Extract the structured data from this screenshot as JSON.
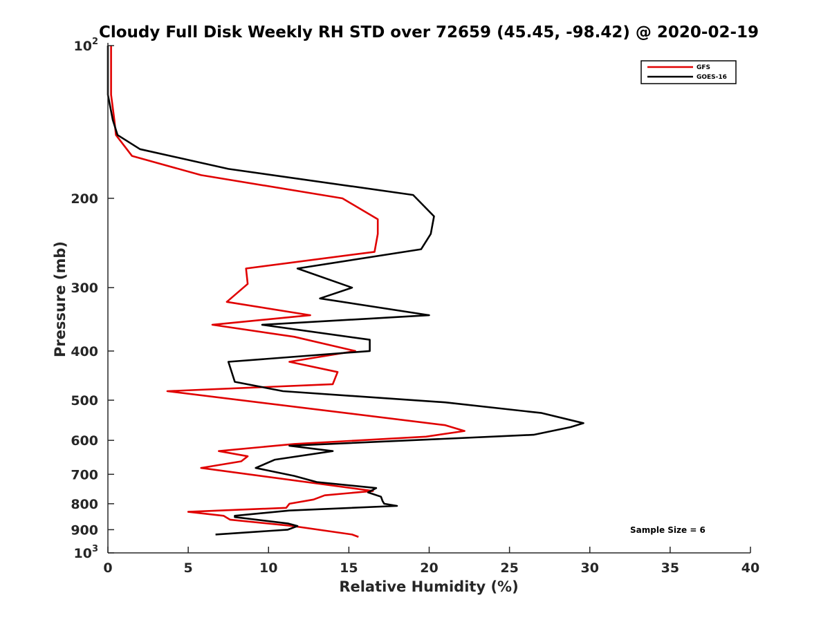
{
  "chart_data": {
    "type": "line",
    "title": "Cloudy Full Disk Weekly RH STD over 72659 (45.45, -98.42) @ 2020-02-19",
    "xlabel": "Relative Humidity (%)",
    "ylabel": "Pressure (mb)",
    "xlim": [
      0,
      40
    ],
    "ylim": [
      100,
      1000
    ],
    "y_scale": "log",
    "y_reversed": true,
    "x_ticks": [
      "0",
      "5",
      "10",
      "15",
      "20",
      "25",
      "30",
      "35",
      "40"
    ],
    "y_ticks": [
      {
        "value": 100,
        "base": "10",
        "exp": "2"
      },
      {
        "value": 200,
        "label": "200"
      },
      {
        "value": 300,
        "label": "300"
      },
      {
        "value": 400,
        "label": "400"
      },
      {
        "value": 500,
        "label": "500"
      },
      {
        "value": 600,
        "label": "600"
      },
      {
        "value": 700,
        "label": "700"
      },
      {
        "value": 800,
        "label": "800"
      },
      {
        "value": 900,
        "label": "900"
      },
      {
        "value": 1000,
        "base": "10",
        "exp": "3"
      }
    ],
    "legend_position": "top-right",
    "annotation": "Sample Size = 6",
    "series": [
      {
        "name": "GFS",
        "color": "#e00000",
        "points": [
          [
            0.2,
            100
          ],
          [
            0.2,
            115
          ],
          [
            0.2,
            125
          ],
          [
            0.4,
            140
          ],
          [
            0.5,
            150
          ],
          [
            1.5,
            165
          ],
          [
            5.8,
            180
          ],
          [
            14.6,
            200
          ],
          [
            16.8,
            220
          ],
          [
            16.8,
            235
          ],
          [
            16.6,
            255
          ],
          [
            8.6,
            275
          ],
          [
            8.7,
            295
          ],
          [
            7.4,
            320
          ],
          [
            12.6,
            340
          ],
          [
            6.5,
            355
          ],
          [
            11.6,
            375
          ],
          [
            15.4,
            400
          ],
          [
            11.3,
            420
          ],
          [
            14.3,
            440
          ],
          [
            14.0,
            465
          ],
          [
            3.7,
            480
          ],
          [
            21.0,
            560
          ],
          [
            22.2,
            575
          ],
          [
            19.8,
            590
          ],
          [
            11.6,
            610
          ],
          [
            6.9,
            630
          ],
          [
            8.7,
            645
          ],
          [
            8.3,
            660
          ],
          [
            5.8,
            680
          ],
          [
            16.5,
            755
          ],
          [
            13.5,
            770
          ],
          [
            12.8,
            785
          ],
          [
            11.3,
            800
          ],
          [
            11.1,
            815
          ],
          [
            5.0,
            830
          ],
          [
            7.2,
            845
          ],
          [
            7.6,
            860
          ],
          [
            11.5,
            885
          ],
          [
            15.2,
            920
          ],
          [
            15.6,
            930
          ]
        ]
      },
      {
        "name": "GOES-16",
        "color": "#000000",
        "points": [
          [
            0.0,
            100
          ],
          [
            0.0,
            125
          ],
          [
            0.3,
            140
          ],
          [
            0.6,
            150
          ],
          [
            2.0,
            160
          ],
          [
            7.5,
            175
          ],
          [
            19.0,
            197
          ],
          [
            20.3,
            217
          ],
          [
            20.1,
            235
          ],
          [
            19.5,
            252
          ],
          [
            11.8,
            275
          ],
          [
            15.2,
            300
          ],
          [
            13.2,
            315
          ],
          [
            20.0,
            340
          ],
          [
            9.6,
            355
          ],
          [
            16.3,
            380
          ],
          [
            16.3,
            400
          ],
          [
            7.5,
            420
          ],
          [
            7.9,
            460
          ],
          [
            10.9,
            480
          ],
          [
            21.0,
            505
          ],
          [
            27.0,
            530
          ],
          [
            29.6,
            555
          ],
          [
            28.8,
            565
          ],
          [
            26.5,
            585
          ],
          [
            11.3,
            615
          ],
          [
            14.0,
            630
          ],
          [
            10.4,
            655
          ],
          [
            9.2,
            680
          ],
          [
            11.6,
            705
          ],
          [
            13.0,
            725
          ],
          [
            16.7,
            745
          ],
          [
            16.2,
            760
          ],
          [
            17.0,
            775
          ],
          [
            17.1,
            790
          ],
          [
            17.2,
            800
          ],
          [
            18.0,
            808
          ],
          [
            11.3,
            825
          ],
          [
            7.9,
            845
          ],
          [
            7.9,
            850
          ],
          [
            11.2,
            875
          ],
          [
            11.8,
            885
          ],
          [
            11.2,
            900
          ],
          [
            6.7,
            920
          ]
        ]
      }
    ]
  }
}
